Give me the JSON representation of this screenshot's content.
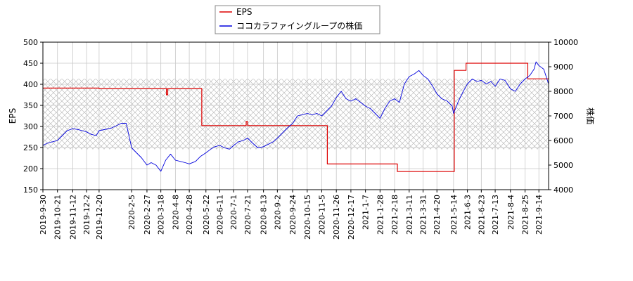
{
  "chart_data": {
    "type": "line",
    "title": "",
    "legend": {
      "placement": "top-center",
      "entries": [
        {
          "name": "EPS",
          "color": "#dd0000"
        },
        {
          "name": "ココカラファイングループの株価",
          "color": "#0000dd"
        }
      ]
    },
    "left_axis": {
      "label": "EPS",
      "ylim": [
        150,
        500
      ],
      "ticks": [
        150,
        200,
        250,
        300,
        350,
        400,
        450,
        500
      ]
    },
    "right_axis": {
      "label": "株価",
      "ylim": [
        4000,
        10000
      ],
      "ticks": [
        4000,
        5000,
        6000,
        7000,
        8000,
        9000,
        10000
      ]
    },
    "shaded_band": {
      "axis": "left",
      "range": [
        246,
        413
      ]
    },
    "grid": true,
    "x_axis": {
      "start": "2019-09-30",
      "end": "2021-09-28",
      "ticks": [
        "2019-9-30",
        "2019-10-21",
        "2019-11-12",
        "2019-12-2",
        "2019-12-20",
        "2020-2-5",
        "2020-2-27",
        "2020-3-18",
        "2020-4-8",
        "2020-4-28",
        "2020-5-22",
        "2020-6-11",
        "2020-7-1",
        "2020-7-21",
        "2020-8-13",
        "2020-9-2",
        "2020-9-24",
        "2020-10-15",
        "2020-11-5",
        "2020-11-26",
        "2020-12-17",
        "2021-1-7",
        "2021-1-28",
        "2021-2-18",
        "2021-3-11",
        "2021-3-31",
        "2021-4-20",
        "2021-5-14",
        "2021-6-3",
        "2021-6-23",
        "2021-7-13",
        "2021-8-4",
        "2021-8-25",
        "2021-9-14"
      ]
    },
    "series": [
      {
        "name": "EPS",
        "axis": "left",
        "color": "#dd0000",
        "step": true,
        "points": [
          [
            "2019-09-30",
            391
          ],
          [
            "2019-12-20",
            390
          ],
          [
            "2020-03-25",
            390
          ],
          [
            "2020-03-26",
            375
          ],
          [
            "2020-03-28",
            390
          ],
          [
            "2020-05-14",
            390
          ],
          [
            "2020-05-16",
            302
          ],
          [
            "2020-07-17",
            302
          ],
          [
            "2020-07-19",
            312
          ],
          [
            "2020-07-21",
            302
          ],
          [
            "2020-11-11",
            302
          ],
          [
            "2020-11-13",
            211
          ],
          [
            "2021-02-20",
            211
          ],
          [
            "2021-02-22",
            193
          ],
          [
            "2021-05-12",
            193
          ],
          [
            "2021-05-15",
            433
          ],
          [
            "2021-05-30",
            433
          ],
          [
            "2021-06-01",
            450
          ],
          [
            "2021-08-27",
            450
          ],
          [
            "2021-08-29",
            413
          ],
          [
            "2021-09-28",
            413
          ]
        ]
      },
      {
        "name": "ココカラファイングループの株価",
        "axis": "right",
        "color": "#0000dd",
        "points": [
          [
            "2019-09-30",
            5800
          ],
          [
            "2019-10-07",
            5900
          ],
          [
            "2019-10-14",
            5950
          ],
          [
            "2019-10-21",
            6000
          ],
          [
            "2019-10-28",
            6200
          ],
          [
            "2019-11-04",
            6400
          ],
          [
            "2019-11-12",
            6480
          ],
          [
            "2019-11-19",
            6450
          ],
          [
            "2019-11-26",
            6400
          ],
          [
            "2019-12-02",
            6350
          ],
          [
            "2019-12-09",
            6250
          ],
          [
            "2019-12-16",
            6200
          ],
          [
            "2019-12-20",
            6400
          ],
          [
            "2020-01-06",
            6500
          ],
          [
            "2020-01-14",
            6600
          ],
          [
            "2020-01-21",
            6700
          ],
          [
            "2020-01-28",
            6700
          ],
          [
            "2020-02-05",
            5700
          ],
          [
            "2020-02-12",
            5500
          ],
          [
            "2020-02-19",
            5300
          ],
          [
            "2020-02-27",
            5000
          ],
          [
            "2020-03-04",
            5100
          ],
          [
            "2020-03-11",
            5000
          ],
          [
            "2020-03-18",
            4750
          ],
          [
            "2020-03-25",
            5200
          ],
          [
            "2020-04-01",
            5450
          ],
          [
            "2020-04-08",
            5200
          ],
          [
            "2020-04-15",
            5150
          ],
          [
            "2020-04-22",
            5100
          ],
          [
            "2020-04-28",
            5050
          ],
          [
            "2020-05-07",
            5150
          ],
          [
            "2020-05-14",
            5350
          ],
          [
            "2020-05-22",
            5500
          ],
          [
            "2020-05-29",
            5650
          ],
          [
            "2020-06-04",
            5750
          ],
          [
            "2020-06-11",
            5800
          ],
          [
            "2020-06-18",
            5700
          ],
          [
            "2020-06-25",
            5650
          ],
          [
            "2020-07-01",
            5800
          ],
          [
            "2020-07-08",
            5950
          ],
          [
            "2020-07-15",
            6000
          ],
          [
            "2020-07-21",
            6100
          ],
          [
            "2020-07-28",
            5900
          ],
          [
            "2020-08-05",
            5700
          ],
          [
            "2020-08-13",
            5750
          ],
          [
            "2020-08-20",
            5850
          ],
          [
            "2020-08-27",
            5950
          ],
          [
            "2020-09-02",
            6100
          ],
          [
            "2020-09-09",
            6300
          ],
          [
            "2020-09-16",
            6500
          ],
          [
            "2020-09-24",
            6700
          ],
          [
            "2020-10-01",
            7000
          ],
          [
            "2020-10-08",
            7050
          ],
          [
            "2020-10-15",
            7100
          ],
          [
            "2020-10-22",
            7050
          ],
          [
            "2020-10-29",
            7100
          ],
          [
            "2020-11-05",
            7000
          ],
          [
            "2020-11-12",
            7200
          ],
          [
            "2020-11-19",
            7400
          ],
          [
            "2020-11-26",
            7750
          ],
          [
            "2020-12-03",
            8000
          ],
          [
            "2020-12-10",
            7700
          ],
          [
            "2020-12-17",
            7600
          ],
          [
            "2020-12-24",
            7700
          ],
          [
            "2021-01-07",
            7400
          ],
          [
            "2021-01-14",
            7300
          ],
          [
            "2021-01-21",
            7100
          ],
          [
            "2021-01-28",
            6900
          ],
          [
            "2021-02-04",
            7300
          ],
          [
            "2021-02-11",
            7600
          ],
          [
            "2021-02-18",
            7700
          ],
          [
            "2021-02-25",
            7550
          ],
          [
            "2021-03-04",
            8300
          ],
          [
            "2021-03-11",
            8600
          ],
          [
            "2021-03-18",
            8700
          ],
          [
            "2021-03-25",
            8850
          ],
          [
            "2021-03-31",
            8650
          ],
          [
            "2021-04-07",
            8500
          ],
          [
            "2021-04-14",
            8200
          ],
          [
            "2021-04-20",
            7900
          ],
          [
            "2021-04-27",
            7700
          ],
          [
            "2021-05-05",
            7600
          ],
          [
            "2021-05-12",
            7400
          ],
          [
            "2021-05-14",
            7100
          ],
          [
            "2021-05-21",
            7600
          ],
          [
            "2021-05-28",
            8000
          ],
          [
            "2021-06-03",
            8300
          ],
          [
            "2021-06-10",
            8500
          ],
          [
            "2021-06-17",
            8400
          ],
          [
            "2021-06-23",
            8450
          ],
          [
            "2021-06-30",
            8300
          ],
          [
            "2021-07-07",
            8400
          ],
          [
            "2021-07-13",
            8200
          ],
          [
            "2021-07-20",
            8500
          ],
          [
            "2021-07-27",
            8450
          ],
          [
            "2021-08-04",
            8100
          ],
          [
            "2021-08-11",
            8000
          ],
          [
            "2021-08-18",
            8300
          ],
          [
            "2021-08-25",
            8500
          ],
          [
            "2021-09-01",
            8650
          ],
          [
            "2021-09-07",
            8900
          ],
          [
            "2021-09-10",
            9200
          ],
          [
            "2021-09-14",
            9050
          ],
          [
            "2021-09-21",
            8900
          ],
          [
            "2021-09-28",
            8300
          ]
        ]
      }
    ]
  }
}
